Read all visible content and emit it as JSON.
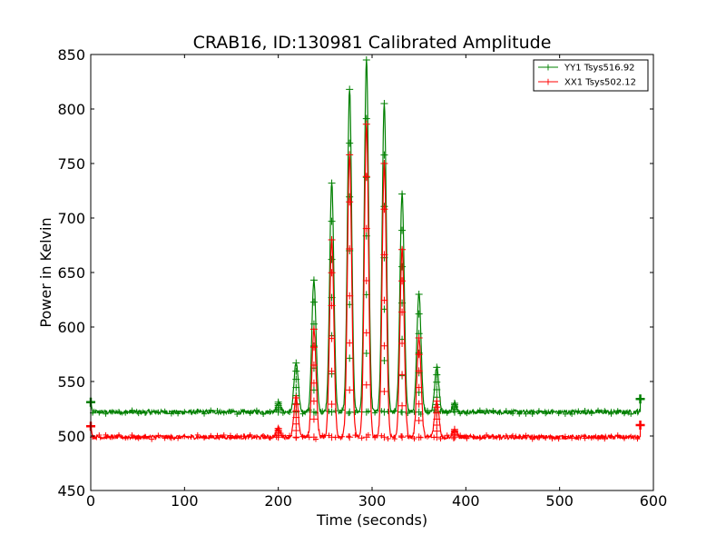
{
  "chart_data": {
    "type": "line",
    "title": "CRAB16, ID:130981 Calibrated Amplitude",
    "xlabel": "Time (seconds)",
    "ylabel": "Power in Kelvin",
    "xlim": [
      0,
      600
    ],
    "ylim": [
      450,
      850
    ],
    "xticks": [
      0,
      100,
      200,
      300,
      400,
      500,
      600
    ],
    "yticks": [
      450,
      500,
      550,
      600,
      650,
      700,
      750,
      800,
      850
    ],
    "grid": false,
    "legend_position": "top-right",
    "series": [
      {
        "name": "YY1 Tsys516.92",
        "color": "#008000",
        "baseline": 522,
        "peaks": [
          {
            "x": 200,
            "y": 531
          },
          {
            "x": 219,
            "y": 567
          },
          {
            "x": 238,
            "y": 643
          },
          {
            "x": 257,
            "y": 732
          },
          {
            "x": 276,
            "y": 818
          },
          {
            "x": 294,
            "y": 845
          },
          {
            "x": 313,
            "y": 805
          },
          {
            "x": 332,
            "y": 722
          },
          {
            "x": 350,
            "y": 630
          },
          {
            "x": 369,
            "y": 563
          },
          {
            "x": 388,
            "y": 530
          }
        ],
        "endpoints": [
          {
            "x": 0,
            "y": 531
          },
          {
            "x": 586,
            "y": 534
          }
        ]
      },
      {
        "name": "XX1 Tsys502.12",
        "color": "#ff0000",
        "baseline": 499,
        "peaks": [
          {
            "x": 200,
            "y": 507
          },
          {
            "x": 219,
            "y": 535
          },
          {
            "x": 238,
            "y": 598
          },
          {
            "x": 257,
            "y": 680
          },
          {
            "x": 276,
            "y": 758
          },
          {
            "x": 294,
            "y": 786
          },
          {
            "x": 313,
            "y": 750
          },
          {
            "x": 332,
            "y": 671
          },
          {
            "x": 350,
            "y": 590
          },
          {
            "x": 369,
            "y": 532
          },
          {
            "x": 388,
            "y": 506
          }
        ],
        "endpoints": [
          {
            "x": 0,
            "y": 509
          },
          {
            "x": 586,
            "y": 510
          }
        ]
      }
    ]
  }
}
